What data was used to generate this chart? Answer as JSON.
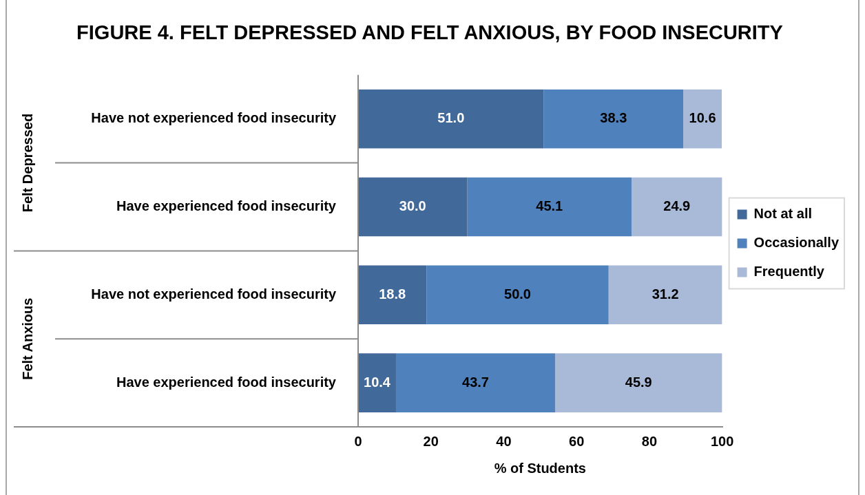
{
  "chart_data": {
    "type": "bar",
    "orientation": "horizontal",
    "stacked": true,
    "title": "FIGURE 4. FELT DEPRESSED AND FELT ANXIOUS, BY FOOD INSECURITY",
    "xlabel": "% of Students",
    "categories": [
      "Have not experienced food insecurity",
      "Have experienced food insecurity",
      "Have not experienced food insecurity",
      "Have experienced food insecurity"
    ],
    "series": [
      {
        "name": "Not at all",
        "color": "#41699a",
        "values": [
          51.0,
          30.0,
          18.8,
          10.4
        ],
        "value_labels": [
          "51.0",
          "30.0",
          "18.8",
          "10.4"
        ]
      },
      {
        "name": "Occasionally",
        "color": "#4f81bd",
        "values": [
          38.3,
          45.1,
          50.0,
          43.7
        ],
        "value_labels": [
          "38.3",
          "45.1",
          "50.0",
          "43.7"
        ]
      },
      {
        "name": "Frequently",
        "color": "#a9b9d8",
        "values": [
          10.6,
          24.9,
          31.2,
          45.9
        ],
        "value_labels": [
          "10.6",
          "24.9",
          "31.2",
          "45.9"
        ]
      }
    ],
    "xlim": [
      0,
      100
    ],
    "xticks": [
      0,
      20,
      40,
      60,
      80,
      100
    ],
    "grid": false,
    "legend": "right",
    "annotations": [
      "Felt Depressed",
      "Felt Anxious"
    ]
  }
}
